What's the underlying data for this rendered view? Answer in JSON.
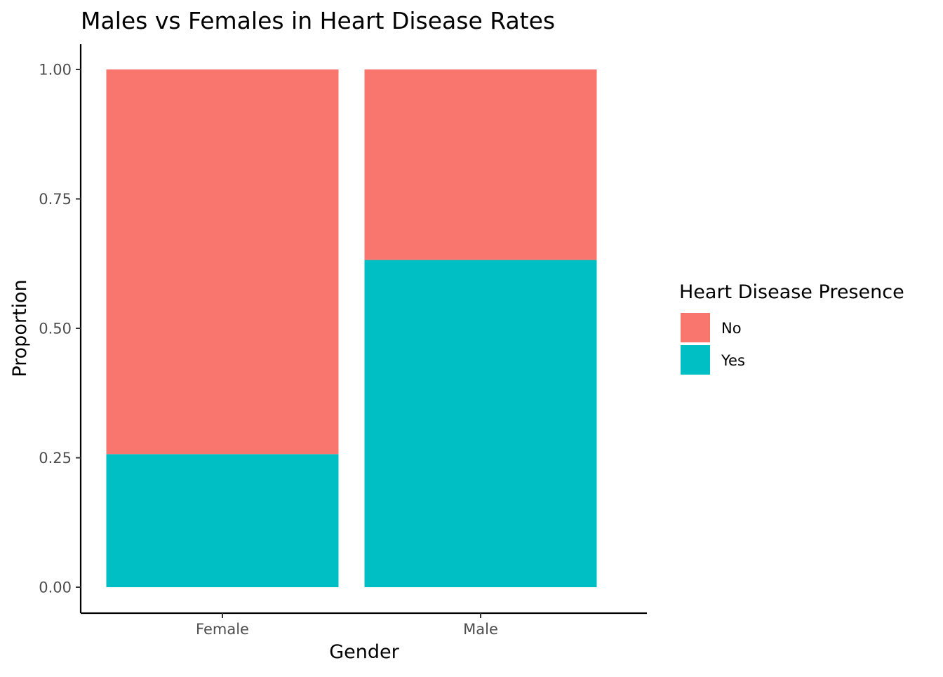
{
  "chart_data": {
    "type": "bar",
    "stacked": true,
    "normalized": true,
    "title": "Males vs Females in Heart Disease Rates",
    "xlabel": "Gender",
    "ylabel": "Proportion",
    "categories": [
      "Female",
      "Male"
    ],
    "series": [
      {
        "name": "Yes",
        "values": [
          0.257,
          0.632
        ],
        "color": "#00BFC4"
      },
      {
        "name": "No",
        "values": [
          0.743,
          0.368
        ],
        "color": "#F8766D"
      }
    ],
    "ylim": [
      0,
      1
    ],
    "yticks": [
      {
        "value": 0,
        "label": "0.00"
      },
      {
        "value": 0.25,
        "label": "0.25"
      },
      {
        "value": 0.5,
        "label": "0.50"
      },
      {
        "value": 0.75,
        "label": "0.75"
      },
      {
        "value": 1,
        "label": "1.00"
      }
    ],
    "grid": false,
    "legend": {
      "title": "Heart Disease Presence",
      "position": "right",
      "items": [
        {
          "label": "No",
          "color": "#F8766D"
        },
        {
          "label": "Yes",
          "color": "#00BFC4"
        }
      ]
    }
  }
}
